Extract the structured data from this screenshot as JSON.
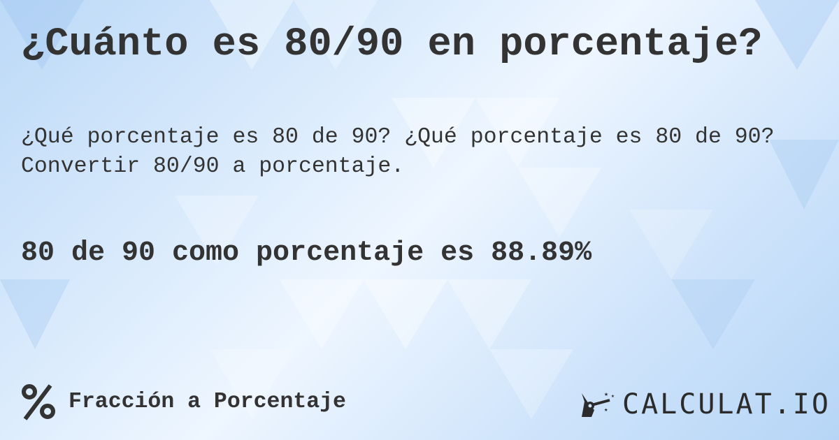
{
  "title": "¿Cuánto es 80/90 en porcentaje?",
  "description": {
    "line1": "¿Qué porcentaje es 80 de 90? ¿Qué porcentaje es 80 de 90?",
    "line2": "Convertir 80/90 a porcentaje."
  },
  "result": "80 de 90 como porcentaje es 88.89%",
  "footer": {
    "category_icon": "percent-icon",
    "category_label": "Fracción a Porcentaje",
    "logo_text": "CALCULAT.IO",
    "logo_icon": "magic-hand-wand-icon"
  },
  "colors": {
    "text": "#333333",
    "background": "#cfe4fb"
  }
}
